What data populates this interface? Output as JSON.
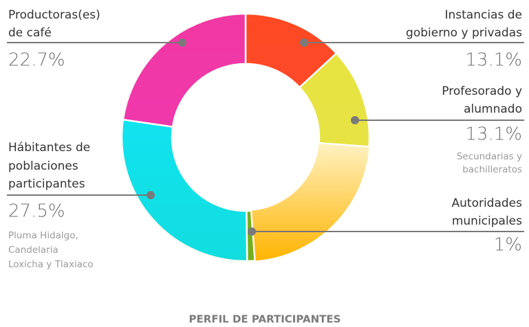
{
  "chart_data": {
    "type": "donut",
    "title": "PERFIL DE PARTICIPANTES",
    "categories": [
      [
        "Instancias de",
        "gobierno y privadas"
      ],
      [
        "Profesorado y",
        "alumnado"
      ],
      [
        "Autoridades",
        "municipales"
      ],
      [
        "Hábitantes de",
        "poblaciones",
        "participantes"
      ],
      [
        "Productoras(es)",
        "de café"
      ]
    ],
    "values": [
      13.1,
      13.1,
      1,
      27.5,
      22.7
    ],
    "value_labels": [
      "13.1%",
      "13.1%",
      "1%",
      "27.5%",
      "22.7%"
    ],
    "notes": [
      null,
      [
        "Secundarias y",
        "bachilleratos"
      ],
      null,
      [
        "Pluma Hidalgo,",
        "Candelaria",
        "Loxicha y Tlaxiaco"
      ],
      null
    ],
    "colors": [
      "#ff3d1f",
      "#e6e23a",
      "#6cae1e",
      "#00e1f0",
      "#f02aa8"
    ]
  }
}
